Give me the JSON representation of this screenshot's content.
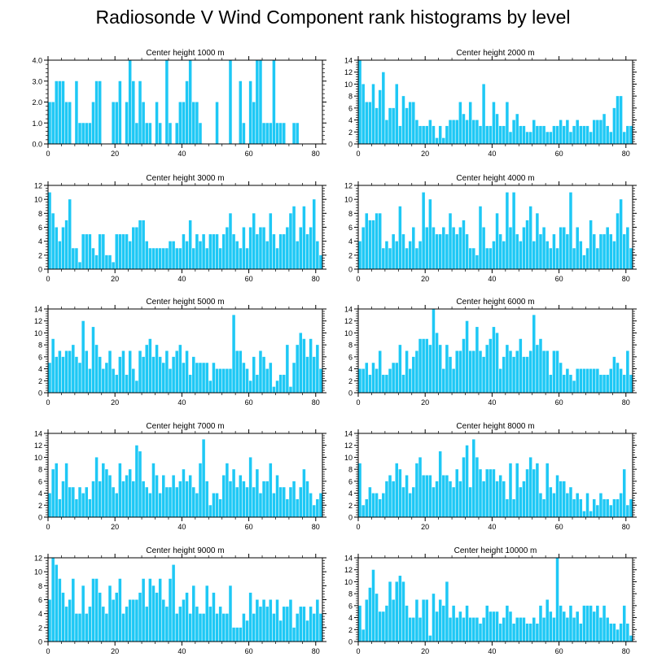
{
  "title": "Radiosonde V Wind Component rank histograms by level",
  "bar_color": "#1ec8f5",
  "chart_data": [
    {
      "type": "bar",
      "title": "Center height 1000 m",
      "xlim": [
        0,
        82
      ],
      "xticks": [
        0,
        20,
        40,
        60,
        80
      ],
      "ylim": [
        0,
        4
      ],
      "yticks": [
        "0.0",
        "1.0",
        "2.0",
        "3.0",
        "4.0"
      ],
      "values": [
        2,
        2,
        3,
        3,
        3,
        2,
        2,
        0,
        3,
        1,
        1,
        1,
        1,
        2,
        3,
        3,
        0,
        0,
        0,
        2,
        2,
        3,
        0,
        2,
        4,
        3,
        1,
        3,
        2,
        1,
        1,
        0,
        2,
        1,
        0,
        4,
        1,
        0,
        1,
        2,
        2,
        3,
        4,
        2,
        2,
        1,
        0,
        0,
        0,
        0,
        2,
        0,
        0,
        0,
        4,
        0,
        0,
        3,
        1,
        0,
        3,
        2,
        4,
        4,
        1,
        1,
        1,
        4,
        1,
        1,
        1,
        0,
        0,
        1,
        1
      ],
      "values_note": "visible bars from x=0 onward"
    },
    {
      "type": "bar",
      "title": "Center height 2000 m",
      "xlim": [
        0,
        82
      ],
      "xticks": [
        0,
        20,
        40,
        60,
        80
      ],
      "ylim": [
        0,
        14
      ],
      "yticks": [
        "0",
        "2",
        "4",
        "6",
        "8",
        "10",
        "12",
        "14"
      ],
      "values": [
        14,
        10,
        7,
        7,
        10,
        6,
        9,
        12,
        4,
        6,
        6,
        10,
        3,
        8,
        6,
        7,
        7,
        4,
        3,
        3,
        3,
        4,
        3,
        1,
        3,
        1,
        3,
        4,
        4,
        4,
        7,
        5,
        4,
        7,
        4,
        4,
        3,
        10,
        3,
        3,
        7,
        5,
        3,
        3,
        7,
        2,
        4,
        5,
        3,
        3,
        2,
        2,
        4,
        3,
        3,
        3,
        2,
        2,
        3,
        3,
        4,
        3,
        4,
        2,
        3,
        4,
        3,
        3,
        3,
        2,
        4,
        4,
        4,
        5,
        3,
        2,
        6,
        8,
        8,
        2,
        3,
        3
      ]
    },
    {
      "type": "bar",
      "title": "Center height 3000 m",
      "xlim": [
        0,
        82
      ],
      "xticks": [
        0,
        20,
        40,
        60,
        80
      ],
      "ylim": [
        0,
        12
      ],
      "yticks": [
        "0",
        "2",
        "4",
        "6",
        "8",
        "10",
        "12"
      ],
      "values": [
        11,
        8,
        6,
        4,
        6,
        7,
        10,
        3,
        3,
        1,
        5,
        5,
        5,
        3,
        2,
        5,
        5,
        2,
        2,
        1,
        5,
        5,
        5,
        5,
        4,
        6,
        6,
        7,
        7,
        4,
        3,
        3,
        3,
        3,
        3,
        3,
        4,
        4,
        3,
        3,
        5,
        4,
        7,
        3,
        5,
        4,
        5,
        3,
        5,
        5,
        5,
        3,
        5,
        6,
        8,
        5,
        4,
        3,
        6,
        3,
        6,
        8,
        5,
        6,
        6,
        4,
        8,
        5,
        3,
        5,
        5,
        6,
        8,
        9,
        4,
        6,
        9,
        5,
        6,
        10,
        4,
        2
      ]
    },
    {
      "type": "bar",
      "title": "Center height 4000 m",
      "xlim": [
        0,
        82
      ],
      "xticks": [
        0,
        20,
        40,
        60,
        80
      ],
      "ylim": [
        0,
        12
      ],
      "yticks": [
        "0",
        "2",
        "4",
        "6",
        "8",
        "10",
        "12"
      ],
      "values": [
        4,
        6,
        8,
        7,
        7,
        8,
        8,
        3,
        4,
        3,
        5,
        4,
        9,
        5,
        3,
        4,
        6,
        3,
        4,
        11,
        6,
        10,
        6,
        5,
        5,
        6,
        5,
        8,
        6,
        5,
        6,
        7,
        5,
        3,
        3,
        2,
        9,
        6,
        3,
        3,
        4,
        8,
        5,
        4,
        11,
        6,
        11,
        5,
        4,
        6,
        7,
        9,
        4,
        8,
        5,
        6,
        4,
        3,
        5,
        3,
        6,
        6,
        5,
        11,
        3,
        6,
        4,
        2,
        3,
        7,
        5,
        3,
        5,
        5,
        6,
        5,
        4,
        8,
        10,
        5,
        6,
        3
      ]
    },
    {
      "type": "bar",
      "title": "Center height 5000 m",
      "xlim": [
        0,
        82
      ],
      "xticks": [
        0,
        20,
        40,
        60,
        80
      ],
      "ylim": [
        0,
        14
      ],
      "yticks": [
        "0",
        "2",
        "4",
        "6",
        "8",
        "10",
        "12",
        "14"
      ],
      "values": [
        5,
        9,
        6,
        7,
        6,
        7,
        7,
        8,
        6,
        5,
        12,
        7,
        4,
        11,
        8,
        6,
        4,
        5,
        7,
        4,
        3,
        6,
        7,
        3,
        7,
        4,
        2,
        7,
        6,
        8,
        9,
        6,
        8,
        6,
        5,
        7,
        4,
        6,
        7,
        8,
        5,
        7,
        3,
        6,
        5,
        5,
        5,
        5,
        2,
        5,
        4,
        4,
        4,
        4,
        4,
        13,
        7,
        7,
        5,
        4,
        2,
        6,
        3,
        7,
        6,
        4,
        5,
        1,
        2,
        3,
        3,
        8,
        1,
        5,
        8,
        10,
        9,
        6,
        9,
        6,
        8,
        4
      ]
    },
    {
      "type": "bar",
      "title": "Center height 6000 m",
      "xlim": [
        0,
        82
      ],
      "xticks": [
        0,
        20,
        40,
        60,
        80
      ],
      "ylim": [
        0,
        14
      ],
      "yticks": [
        "0",
        "2",
        "4",
        "6",
        "8",
        "10",
        "12",
        "14"
      ],
      "values": [
        4,
        4,
        5,
        3,
        5,
        4,
        7,
        3,
        3,
        4,
        5,
        5,
        8,
        3,
        7,
        4,
        6,
        7,
        9,
        9,
        9,
        8,
        14,
        10,
        8,
        4,
        8,
        6,
        4,
        7,
        7,
        9,
        12,
        7,
        7,
        11,
        7,
        6,
        8,
        9,
        11,
        10,
        4,
        6,
        8,
        7,
        6,
        7,
        9,
        6,
        6,
        7,
        13,
        8,
        9,
        7,
        7,
        3,
        7,
        7,
        5,
        3,
        4,
        3,
        2,
        4,
        4,
        4,
        4,
        4,
        4,
        4,
        3,
        3,
        3,
        4,
        6,
        5,
        4,
        3,
        7,
        3
      ]
    },
    {
      "type": "bar",
      "title": "Center height 7000 m",
      "xlim": [
        0,
        82
      ],
      "xticks": [
        0,
        20,
        40,
        60,
        80
      ],
      "ylim": [
        0,
        14
      ],
      "yticks": [
        "0",
        "2",
        "4",
        "6",
        "8",
        "10",
        "12",
        "14"
      ],
      "values": [
        4,
        8,
        9,
        3,
        6,
        9,
        5,
        5,
        3,
        5,
        4,
        5,
        3,
        6,
        10,
        6,
        9,
        8,
        7,
        5,
        4,
        9,
        6,
        7,
        8,
        6,
        12,
        11,
        6,
        5,
        4,
        9,
        7,
        4,
        7,
        5,
        5,
        7,
        5,
        6,
        8,
        6,
        7,
        5,
        4,
        9,
        13,
        6,
        2,
        4,
        4,
        3,
        7,
        9,
        6,
        8,
        5,
        7,
        6,
        5,
        10,
        5,
        8,
        4,
        6,
        6,
        9,
        4,
        7,
        5,
        5,
        3,
        5,
        6,
        3,
        5,
        8,
        6,
        4,
        2,
        3,
        4
      ]
    },
    {
      "type": "bar",
      "title": "Center height 8000 m",
      "xlim": [
        0,
        82
      ],
      "xticks": [
        0,
        20,
        40,
        60,
        80
      ],
      "ylim": [
        0,
        14
      ],
      "yticks": [
        "0",
        "2",
        "4",
        "6",
        "8",
        "10",
        "12",
        "14"
      ],
      "values": [
        9,
        2,
        3,
        5,
        4,
        4,
        3,
        4,
        6,
        7,
        6,
        9,
        8,
        5,
        7,
        4,
        5,
        9,
        10,
        7,
        7,
        7,
        5,
        6,
        11,
        7,
        7,
        6,
        5,
        8,
        6,
        10,
        12,
        5,
        13,
        10,
        8,
        6,
        8,
        8,
        8,
        6,
        7,
        6,
        3,
        9,
        3,
        9,
        5,
        6,
        8,
        10,
        8,
        9,
        4,
        3,
        9,
        5,
        4,
        7,
        6,
        6,
        4,
        5,
        3,
        4,
        3,
        1,
        4,
        1,
        3,
        2,
        4,
        3,
        3,
        2,
        3,
        3,
        4,
        8,
        2,
        3
      ]
    },
    {
      "type": "bar",
      "title": "Center height 9000 m",
      "xlim": [
        0,
        82
      ],
      "xticks": [
        0,
        20,
        40,
        60,
        80
      ],
      "ylim": [
        0,
        12
      ],
      "yticks": [
        "0",
        "2",
        "4",
        "6",
        "8",
        "10",
        "12"
      ],
      "values": [
        6,
        12,
        11,
        9,
        7,
        5,
        6,
        9,
        4,
        4,
        8,
        4,
        5,
        9,
        9,
        7,
        5,
        4,
        8,
        6,
        7,
        9,
        4,
        5,
        6,
        6,
        6,
        7,
        9,
        5,
        9,
        8,
        7,
        9,
        6,
        5,
        9,
        11,
        4,
        5,
        6,
        7,
        4,
        8,
        5,
        4,
        4,
        8,
        5,
        7,
        4,
        5,
        4,
        4,
        8,
        2,
        2,
        2,
        4,
        3,
        7,
        4,
        6,
        5,
        6,
        5,
        6,
        4,
        6,
        3,
        5,
        5,
        6,
        2,
        4,
        5,
        5,
        3,
        5,
        4,
        6,
        4
      ]
    },
    {
      "type": "bar",
      "title": "Center height 10000 m",
      "xlim": [
        0,
        82
      ],
      "xticks": [
        0,
        20,
        40,
        60,
        80
      ],
      "ylim": [
        0,
        14
      ],
      "yticks": [
        "0",
        "2",
        "4",
        "6",
        "8",
        "10",
        "12",
        "14"
      ],
      "values": [
        6,
        2,
        7,
        9,
        12,
        8,
        5,
        5,
        6,
        10,
        7,
        10,
        11,
        10,
        6,
        4,
        4,
        7,
        4,
        7,
        7,
        1,
        8,
        5,
        7,
        6,
        10,
        4,
        6,
        4,
        5,
        4,
        6,
        4,
        4,
        4,
        3,
        4,
        6,
        5,
        5,
        5,
        3,
        4,
        6,
        5,
        3,
        4,
        4,
        4,
        3,
        3,
        4,
        3,
        6,
        4,
        7,
        5,
        4,
        14,
        6,
        5,
        4,
        6,
        4,
        5,
        3,
        6,
        6,
        6,
        5,
        6,
        4,
        6,
        4,
        3,
        3,
        2,
        3,
        6,
        3,
        1
      ]
    }
  ]
}
